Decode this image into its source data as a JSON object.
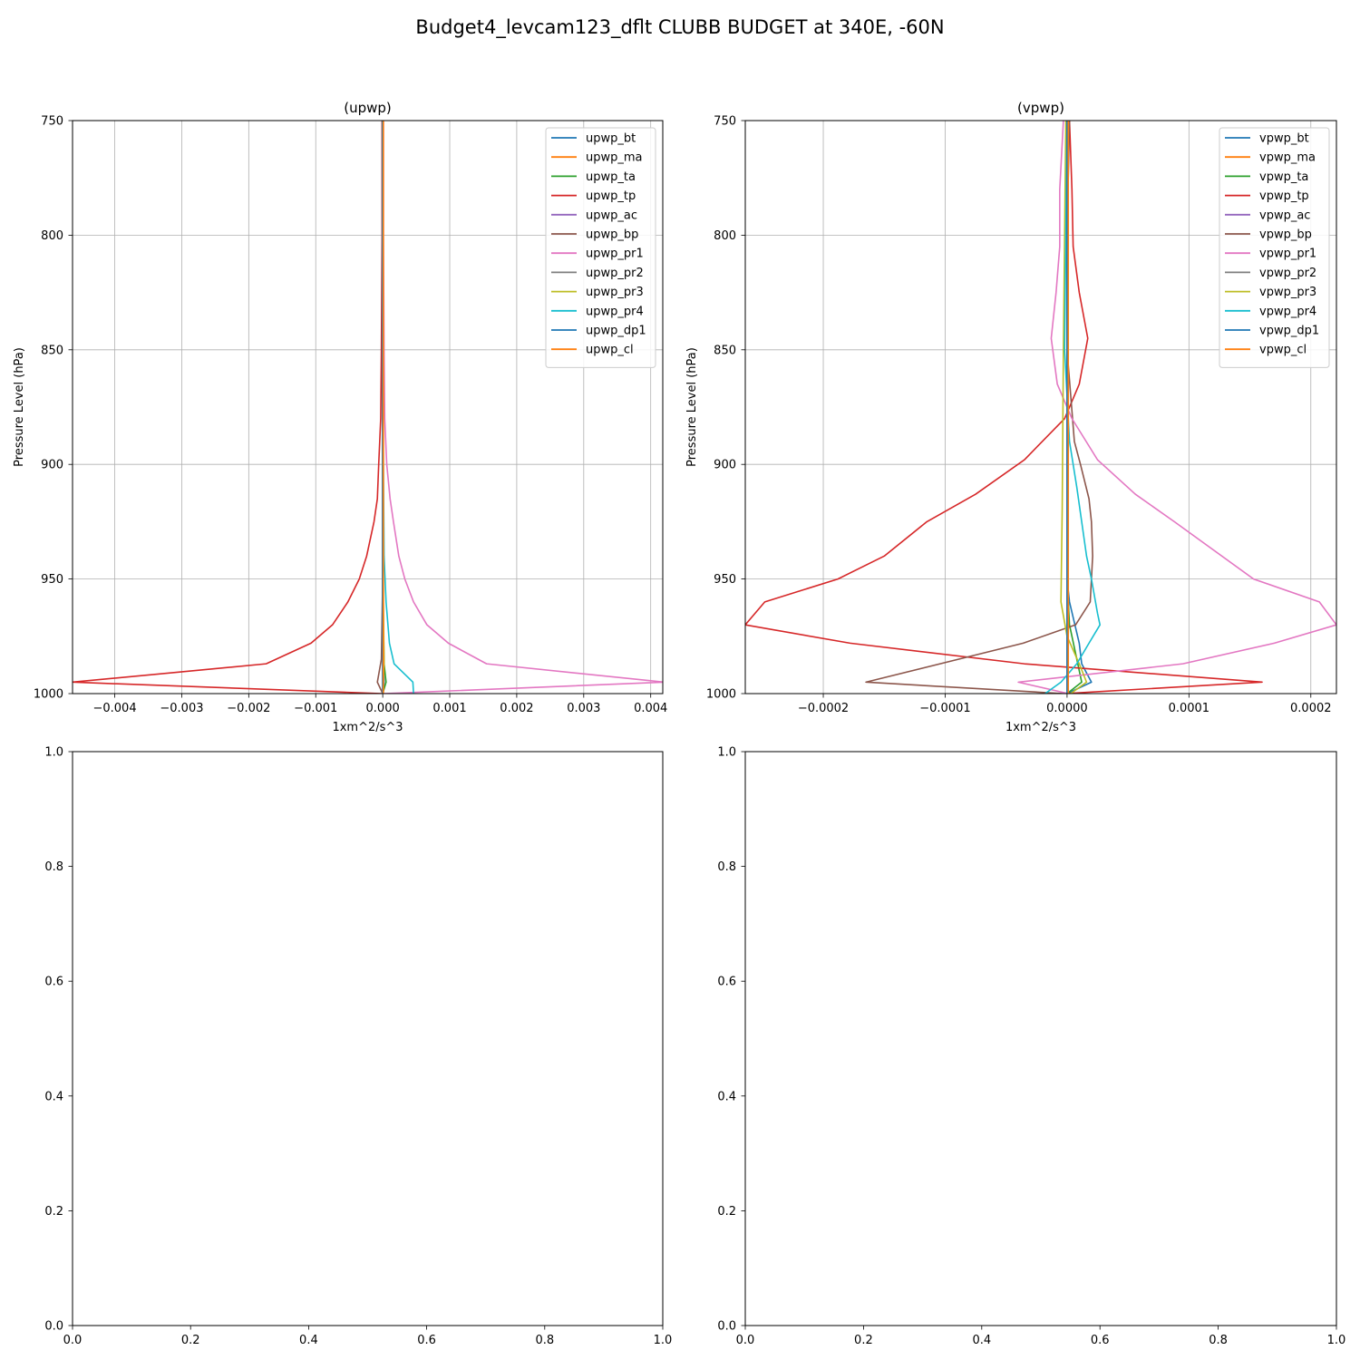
{
  "figure": {
    "suptitle": "Budget4_levcam123_dflt CLUBB BUDGET at 340E, -60N"
  },
  "chart_data": [
    {
      "id": "upwp",
      "type": "line",
      "title": "(upwp)",
      "xlabel": "1xm^2/s^3",
      "ylabel": "Pressure Level (hPa)",
      "xlim": [
        -0.00463,
        0.00418
      ],
      "ylim": [
        1000,
        750
      ],
      "yaxis_inverted": true,
      "xticks": [
        -0.004,
        -0.003,
        -0.002,
        -0.001,
        0.0,
        0.001,
        0.002,
        0.003,
        0.004
      ],
      "xtick_labels": [
        "−0.004",
        "−0.003",
        "−0.002",
        "−0.001",
        "0.000",
        "0.001",
        "0.002",
        "0.003",
        "0.004"
      ],
      "yticks": [
        750,
        800,
        850,
        900,
        950,
        1000
      ],
      "ytick_labels": [
        "750",
        "800",
        "850",
        "900",
        "950",
        "1000"
      ],
      "grid": true,
      "legend_position": "upper right",
      "series": [
        {
          "name": "upwp_bt",
          "color": "#1f77b4",
          "values": [
            [
              0,
              750
            ],
            [
              0,
              800
            ],
            [
              0,
              850
            ],
            [
              0,
              900
            ],
            [
              0,
              950
            ],
            [
              0,
              980
            ],
            [
              2e-05,
              995
            ],
            [
              0,
              1000
            ]
          ]
        },
        {
          "name": "upwp_ma",
          "color": "#ff7f0e",
          "values": [
            [
              0,
              750
            ],
            [
              0,
              850
            ],
            [
              0,
              950
            ],
            [
              0,
              1000
            ]
          ]
        },
        {
          "name": "upwp_ta",
          "color": "#2ca02c",
          "values": [
            [
              0,
              750
            ],
            [
              0,
              850
            ],
            [
              0,
              950
            ],
            [
              2e-05,
              987
            ],
            [
              5e-05,
              995
            ],
            [
              0,
              1000
            ]
          ]
        },
        {
          "name": "upwp_tp",
          "color": "#d62728",
          "values": [
            [
              -1e-05,
              750
            ],
            [
              -1e-05,
              800
            ],
            [
              -2e-05,
              850
            ],
            [
              -3e-05,
              880
            ],
            [
              -6e-05,
              900
            ],
            [
              -8e-05,
              915
            ],
            [
              -0.00013,
              925
            ],
            [
              -0.00024,
              940
            ],
            [
              -0.00035,
              950
            ],
            [
              -0.00052,
              960
            ],
            [
              -0.00075,
              970
            ],
            [
              -0.00107,
              978
            ],
            [
              -0.00174,
              987
            ],
            [
              -0.00463,
              995
            ],
            [
              -1e-05,
              1000
            ]
          ]
        },
        {
          "name": "upwp_ac",
          "color": "#9467bd",
          "values": [
            [
              0,
              750
            ],
            [
              0,
              1000
            ]
          ]
        },
        {
          "name": "upwp_bp",
          "color": "#8c564b",
          "values": [
            [
              0,
              750
            ],
            [
              0,
              900
            ],
            [
              0,
              950
            ],
            [
              -2e-05,
              985
            ],
            [
              -8e-05,
              995
            ],
            [
              0,
              1000
            ]
          ]
        },
        {
          "name": "upwp_pr1",
          "color": "#e377c2",
          "values": [
            [
              1e-05,
              750
            ],
            [
              1e-05,
              800
            ],
            [
              2e-05,
              850
            ],
            [
              3e-05,
              880
            ],
            [
              6e-05,
              900
            ],
            [
              0.00011,
              915
            ],
            [
              0.00016,
              925
            ],
            [
              0.00024,
              940
            ],
            [
              0.00033,
              950
            ],
            [
              0.00046,
              960
            ],
            [
              0.00066,
              970
            ],
            [
              0.00098,
              978
            ],
            [
              0.00155,
              987
            ],
            [
              0.0042,
              995
            ],
            [
              2e-05,
              1000
            ]
          ]
        },
        {
          "name": "upwp_pr2",
          "color": "#7f7f7f",
          "values": [
            [
              0,
              750
            ],
            [
              0,
              1000
            ]
          ]
        },
        {
          "name": "upwp_pr3",
          "color": "#bcbd22",
          "values": [
            [
              0,
              750
            ],
            [
              0,
              900
            ],
            [
              1e-05,
              960
            ],
            [
              2e-05,
              987
            ],
            [
              0,
              1000
            ]
          ]
        },
        {
          "name": "upwp_pr4",
          "color": "#17becf",
          "values": [
            [
              0,
              750
            ],
            [
              0,
              850
            ],
            [
              1e-05,
              900
            ],
            [
              2e-05,
              940
            ],
            [
              5e-05,
              960
            ],
            [
              0.0001,
              978
            ],
            [
              0.00017,
              987
            ],
            [
              0.00045,
              995
            ],
            [
              0.00046,
              1000
            ]
          ]
        },
        {
          "name": "upwp_dp1",
          "color": "#1f77b4",
          "values": [
            [
              0,
              750
            ],
            [
              0,
              1000
            ]
          ]
        },
        {
          "name": "upwp_cl",
          "color": "#ff7f0e",
          "values": [
            [
              1e-05,
              750
            ],
            [
              1e-05,
              1000
            ]
          ]
        }
      ]
    },
    {
      "id": "vpwp",
      "type": "line",
      "title": "(vpwp)",
      "xlabel": "1xm^2/s^3",
      "ylabel": "Pressure Level (hPa)",
      "xlim": [
        -0.000264,
        0.000221
      ],
      "ylim": [
        1000,
        750
      ],
      "yaxis_inverted": true,
      "xticks": [
        -0.0002,
        -0.0001,
        0.0,
        0.0001,
        0.0002
      ],
      "xtick_labels": [
        "−0.0002",
        "−0.0001",
        "0.0000",
        "0.0001",
        "0.0002"
      ],
      "yticks": [
        750,
        800,
        850,
        900,
        950,
        1000
      ],
      "ytick_labels": [
        "750",
        "800",
        "850",
        "900",
        "950",
        "1000"
      ],
      "grid": true,
      "legend_position": "upper right",
      "series": [
        {
          "name": "vpwp_bt",
          "color": "#1f77b4",
          "values": [
            [
              1e-06,
              750
            ],
            [
              0,
              850
            ],
            [
              0,
              900
            ],
            [
              0,
              950
            ],
            [
              2e-06,
              960
            ],
            [
              1e-05,
              978
            ],
            [
              1.2e-05,
              987
            ],
            [
              2e-05,
              995
            ],
            [
              0,
              1000
            ]
          ]
        },
        {
          "name": "vpwp_ma",
          "color": "#ff7f0e",
          "values": [
            [
              0,
              750
            ],
            [
              0,
              1000
            ]
          ]
        },
        {
          "name": "vpwp_ta",
          "color": "#2ca02c",
          "values": [
            [
              0,
              750
            ],
            [
              0,
              900
            ],
            [
              0,
              950
            ],
            [
              2e-06,
              970
            ],
            [
              8e-06,
              985
            ],
            [
              1.2e-05,
              995
            ],
            [
              0,
              1000
            ]
          ]
        },
        {
          "name": "vpwp_tp",
          "color": "#d62728",
          "values": [
            [
              2e-06,
              750
            ],
            [
              4e-06,
              780
            ],
            [
              5e-06,
              805
            ],
            [
              1e-05,
              825
            ],
            [
              1.7e-05,
              845
            ],
            [
              1e-05,
              865
            ],
            [
              -2e-06,
              880
            ],
            [
              -3.5e-05,
              898
            ],
            [
              -7.5e-05,
              913
            ],
            [
              -0.000115,
              925
            ],
            [
              -0.00015,
              940
            ],
            [
              -0.000188,
              950
            ],
            [
              -0.000248,
              960
            ],
            [
              -0.000264,
              970
            ],
            [
              -0.000178,
              978
            ],
            [
              -3.5e-05,
              987
            ],
            [
              0.00016,
              995
            ],
            [
              -2e-06,
              1000
            ]
          ]
        },
        {
          "name": "vpwp_ac",
          "color": "#9467bd",
          "values": [
            [
              0,
              750
            ],
            [
              0,
              1000
            ]
          ]
        },
        {
          "name": "vpwp_bp",
          "color": "#8c564b",
          "values": [
            [
              2e-06,
              750
            ],
            [
              0,
              800
            ],
            [
              0,
              850
            ],
            [
              6e-06,
              890
            ],
            [
              1.1e-05,
              900
            ],
            [
              1.8e-05,
              915
            ],
            [
              2e-05,
              925
            ],
            [
              2.1e-05,
              940
            ],
            [
              1.9e-05,
              960
            ],
            [
              7e-06,
              970
            ],
            [
              -3.6e-05,
              978
            ],
            [
              -0.000165,
              995
            ],
            [
              -3e-06,
              1000
            ]
          ]
        },
        {
          "name": "vpwp_pr1",
          "color": "#e377c2",
          "values": [
            [
              -3e-06,
              750
            ],
            [
              -6e-06,
              780
            ],
            [
              -6e-06,
              805
            ],
            [
              -9e-06,
              825
            ],
            [
              -1.3e-05,
              845
            ],
            [
              -8e-06,
              865
            ],
            [
              4e-06,
              880
            ],
            [
              2.5e-05,
              898
            ],
            [
              5.6e-05,
              913
            ],
            [
              8.8e-05,
              925
            ],
            [
              0.000153,
              950
            ],
            [
              0.000207,
              960
            ],
            [
              0.000221,
              970
            ],
            [
              0.00017,
              978
            ],
            [
              9.5e-05,
              987
            ],
            [
              -4e-05,
              995
            ],
            [
              1e-06,
              1000
            ]
          ]
        },
        {
          "name": "vpwp_pr2",
          "color": "#7f7f7f",
          "values": [
            [
              0,
              750
            ],
            [
              0,
              1000
            ]
          ]
        },
        {
          "name": "vpwp_pr3",
          "color": "#bcbd22",
          "values": [
            [
              -1e-06,
              750
            ],
            [
              -3e-06,
              850
            ],
            [
              -4e-06,
              920
            ],
            [
              -5e-06,
              960
            ],
            [
              0,
              975
            ],
            [
              1e-05,
              987
            ],
            [
              1.6e-05,
              995
            ],
            [
              3e-06,
              1000
            ]
          ]
        },
        {
          "name": "vpwp_pr4",
          "color": "#17becf",
          "values": [
            [
              0,
              750
            ],
            [
              -2e-06,
              850
            ],
            [
              2e-06,
              890
            ],
            [
              8e-06,
              910
            ],
            [
              1.6e-05,
              940
            ],
            [
              2e-05,
              950
            ],
            [
              2.5e-05,
              965
            ],
            [
              2.7e-05,
              970
            ],
            [
              1.8e-05,
              978
            ],
            [
              8e-06,
              987
            ],
            [
              -5e-06,
              995
            ],
            [
              -1.8e-05,
              1000
            ]
          ]
        },
        {
          "name": "vpwp_dp1",
          "color": "#1f77b4",
          "values": [
            [
              0,
              750
            ],
            [
              0,
              1000
            ]
          ]
        },
        {
          "name": "vpwp_cl",
          "color": "#ff7f0e",
          "values": [
            [
              1e-06,
              750
            ],
            [
              1e-06,
              1000
            ]
          ]
        }
      ]
    },
    {
      "id": "empty-1",
      "type": "line",
      "xlim": [
        0,
        1
      ],
      "ylim": [
        0,
        1
      ],
      "xticks": [
        0,
        0.2,
        0.4,
        0.6,
        0.8,
        1.0
      ],
      "xtick_labels": [
        "0.0",
        "0.2",
        "0.4",
        "0.6",
        "0.8",
        "1.0"
      ],
      "yticks": [
        0,
        0.2,
        0.4,
        0.6,
        0.8,
        1.0
      ],
      "ytick_labels": [
        "0.0",
        "0.2",
        "0.4",
        "0.6",
        "0.8",
        "1.0"
      ],
      "grid": false,
      "series": []
    },
    {
      "id": "empty-2",
      "type": "line",
      "xlim": [
        0,
        1
      ],
      "ylim": [
        0,
        1
      ],
      "xticks": [
        0,
        0.2,
        0.4,
        0.6,
        0.8,
        1.0
      ],
      "xtick_labels": [
        "0.0",
        "0.2",
        "0.4",
        "0.6",
        "0.8",
        "1.0"
      ],
      "yticks": [
        0,
        0.2,
        0.4,
        0.6,
        0.8,
        1.0
      ],
      "ytick_labels": [
        "0.0",
        "0.2",
        "0.4",
        "0.6",
        "0.8",
        "1.0"
      ],
      "grid": false,
      "series": []
    }
  ]
}
